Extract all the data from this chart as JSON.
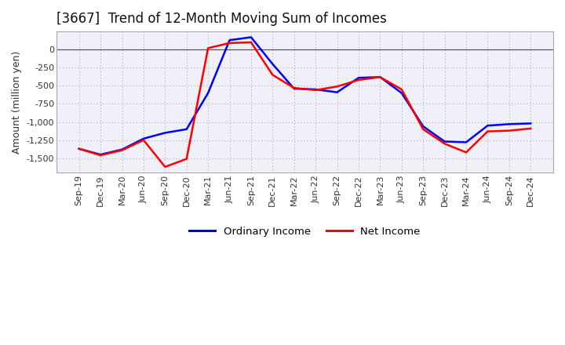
{
  "title": "[3667]  Trend of 12-Month Moving Sum of Incomes",
  "ylabel": "Amount (million yen)",
  "x_labels": [
    "Sep-19",
    "Dec-19",
    "Mar-20",
    "Jun-20",
    "Sep-20",
    "Dec-20",
    "Mar-21",
    "Jun-21",
    "Sep-21",
    "Dec-21",
    "Mar-22",
    "Jun-22",
    "Sep-22",
    "Dec-22",
    "Mar-23",
    "Jun-23",
    "Sep-23",
    "Dec-23",
    "Mar-24",
    "Jun-24",
    "Sep-24",
    "Dec-24"
  ],
  "ordinary_income": [
    -1370,
    -1450,
    -1380,
    -1230,
    -1150,
    -1100,
    -600,
    130,
    170,
    -200,
    -540,
    -550,
    -590,
    -390,
    -380,
    -600,
    -1060,
    -1270,
    -1280,
    -1050,
    -1030,
    -1020
  ],
  "net_income": [
    -1370,
    -1460,
    -1390,
    -1250,
    -1620,
    -1510,
    20,
    90,
    100,
    -350,
    -530,
    -560,
    -510,
    -420,
    -380,
    -550,
    -1100,
    -1300,
    -1420,
    -1130,
    -1120,
    -1090
  ],
  "ordinary_color": "#0000ff",
  "net_color": "#ff0000",
  "line_width": 1.8,
  "ylim": [
    -1700,
    250
  ],
  "yticks": [
    0,
    -250,
    -500,
    -750,
    -1000,
    -1250,
    -1500
  ],
  "background_color": "#ffffff",
  "plot_bg_color": "#f0f0f8",
  "grid_color": "#999999",
  "legend_labels": [
    "Ordinary Income",
    "Net Income"
  ],
  "title_fontsize": 12,
  "ylabel_fontsize": 9,
  "tick_fontsize": 8
}
